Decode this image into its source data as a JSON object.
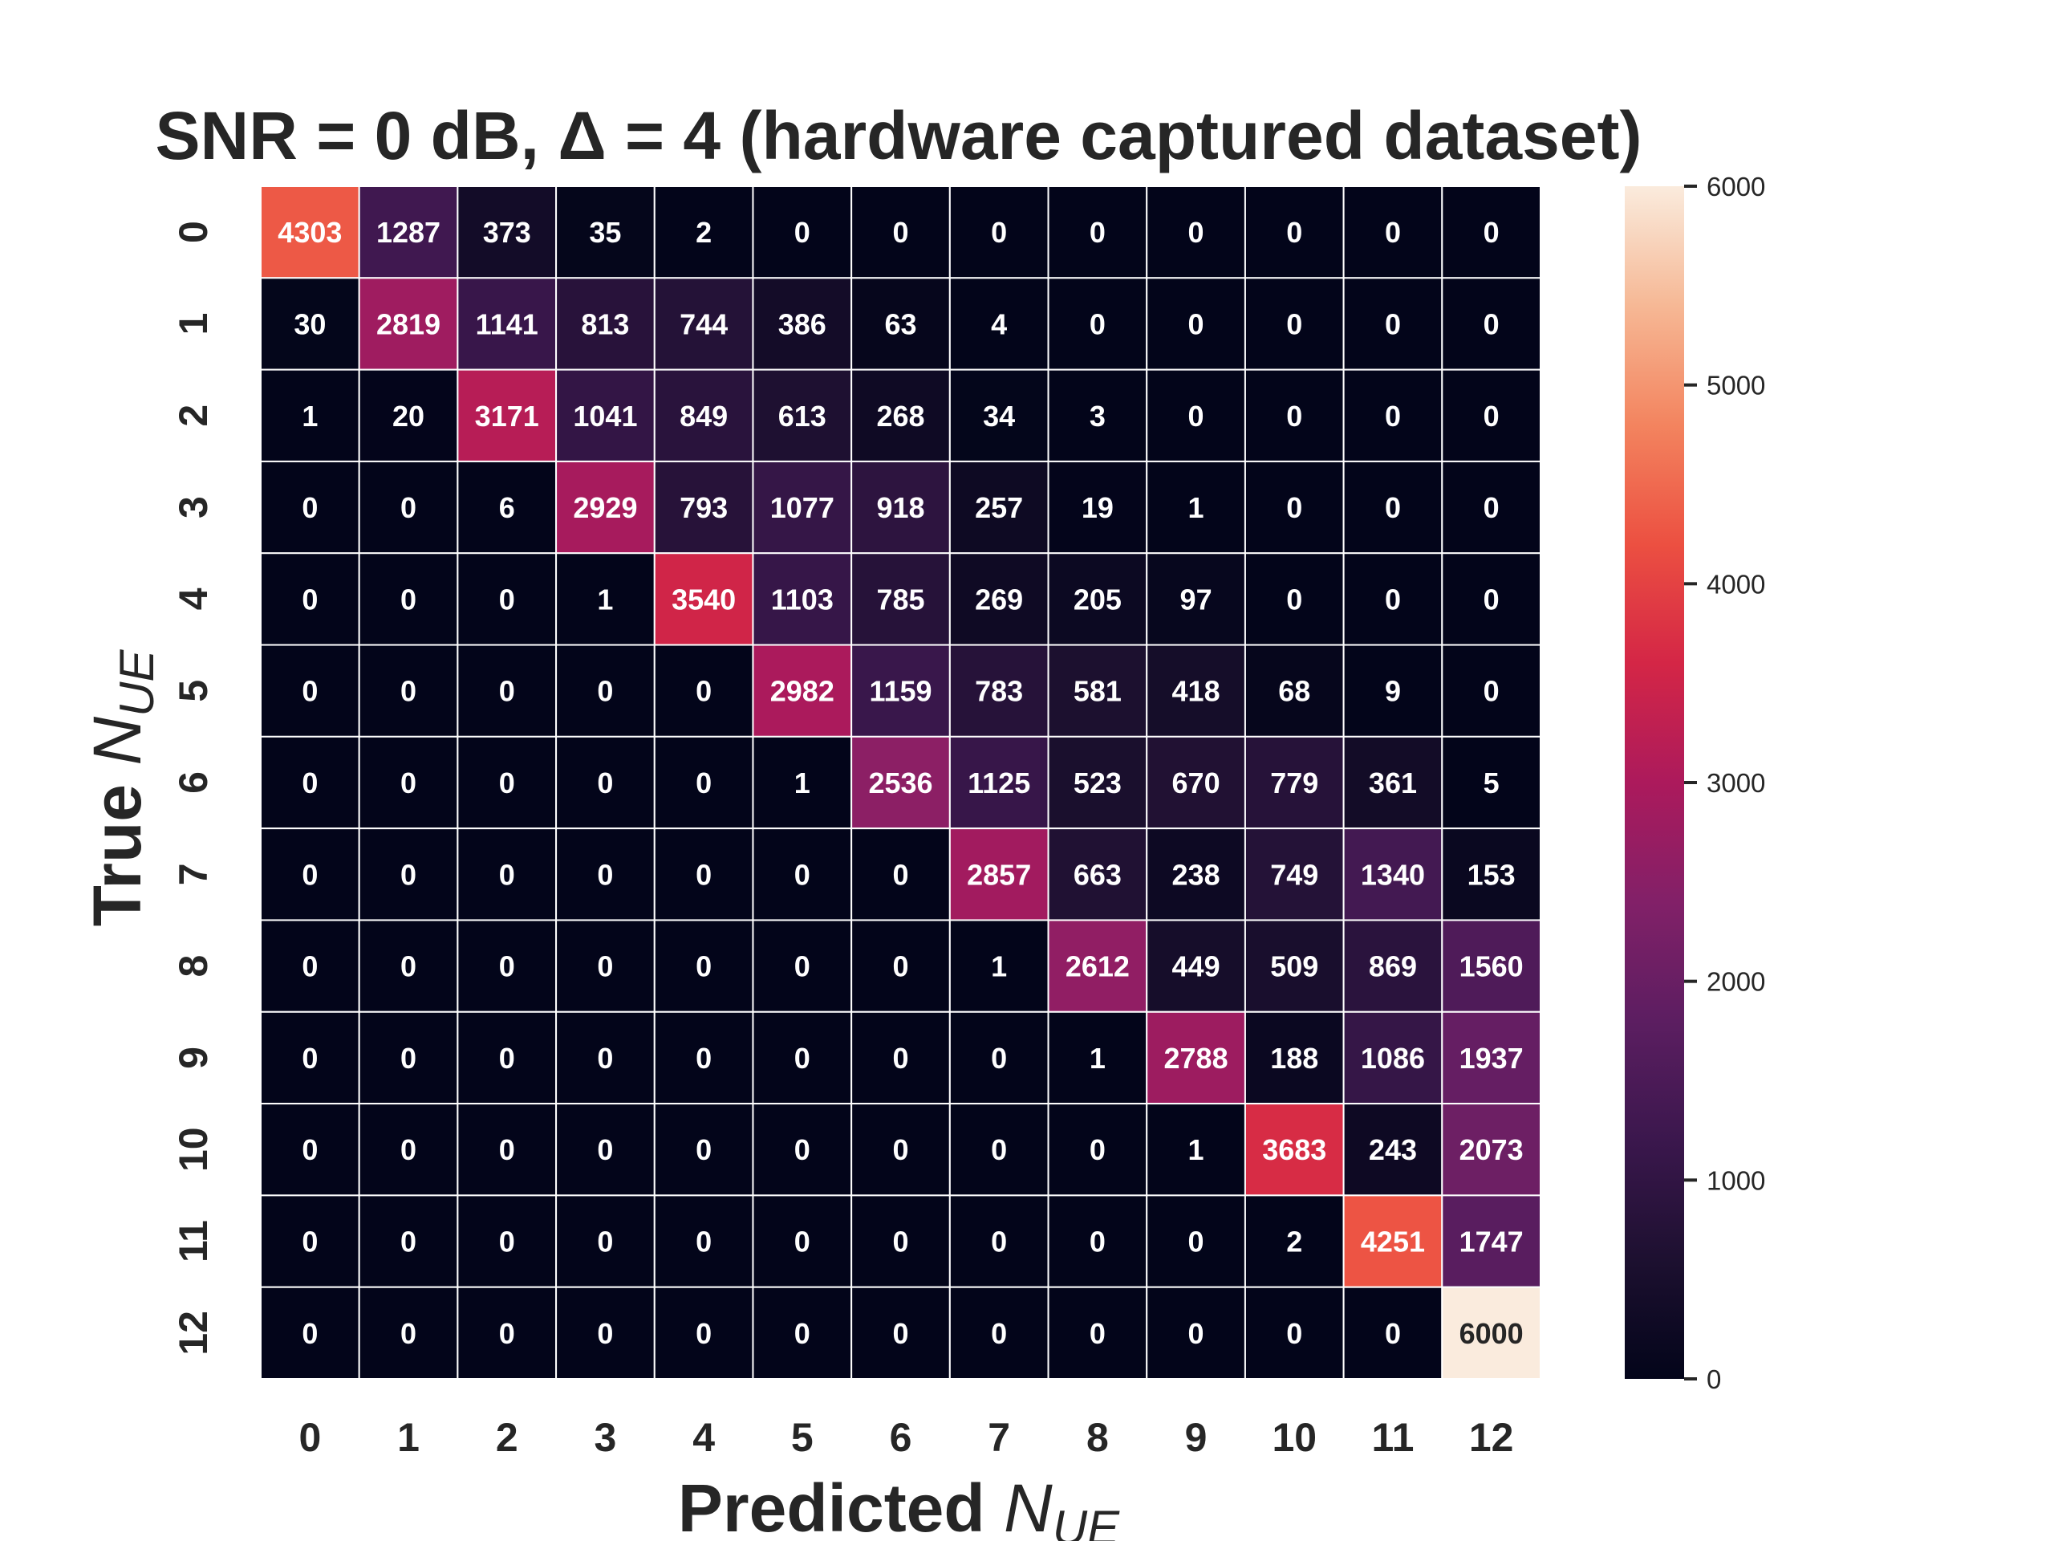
{
  "chart_data": {
    "type": "heatmap",
    "title": "SNR = 0 dB, Δ = 4 (hardware captured dataset)",
    "xlabel": {
      "main": "Predicted ",
      "italic": "N",
      "sub": "UE"
    },
    "ylabel": {
      "main": "True ",
      "italic": "N",
      "sub": "UE"
    },
    "x_categories": [
      "0",
      "1",
      "2",
      "3",
      "4",
      "5",
      "6",
      "7",
      "8",
      "9",
      "10",
      "11",
      "12"
    ],
    "y_categories": [
      "0",
      "1",
      "2",
      "3",
      "4",
      "5",
      "6",
      "7",
      "8",
      "9",
      "10",
      "11",
      "12"
    ],
    "matrix": [
      [
        4303,
        1287,
        373,
        35,
        2,
        0,
        0,
        0,
        0,
        0,
        0,
        0,
        0
      ],
      [
        30,
        2819,
        1141,
        813,
        744,
        386,
        63,
        4,
        0,
        0,
        0,
        0,
        0
      ],
      [
        1,
        20,
        3171,
        1041,
        849,
        613,
        268,
        34,
        3,
        0,
        0,
        0,
        0
      ],
      [
        0,
        0,
        6,
        2929,
        793,
        1077,
        918,
        257,
        19,
        1,
        0,
        0,
        0
      ],
      [
        0,
        0,
        0,
        1,
        3540,
        1103,
        785,
        269,
        205,
        97,
        0,
        0,
        0
      ],
      [
        0,
        0,
        0,
        0,
        0,
        2982,
        1159,
        783,
        581,
        418,
        68,
        9,
        0
      ],
      [
        0,
        0,
        0,
        0,
        0,
        1,
        2536,
        1125,
        523,
        670,
        779,
        361,
        5
      ],
      [
        0,
        0,
        0,
        0,
        0,
        0,
        0,
        2857,
        663,
        238,
        749,
        1340,
        153
      ],
      [
        0,
        0,
        0,
        0,
        0,
        0,
        0,
        1,
        2612,
        449,
        509,
        869,
        1560
      ],
      [
        0,
        0,
        0,
        0,
        0,
        0,
        0,
        0,
        1,
        2788,
        188,
        1086,
        1937
      ],
      [
        0,
        0,
        0,
        0,
        0,
        0,
        0,
        0,
        0,
        1,
        3683,
        243,
        2073
      ],
      [
        0,
        0,
        0,
        0,
        0,
        0,
        0,
        0,
        0,
        0,
        2,
        4251,
        1747
      ],
      [
        0,
        0,
        0,
        0,
        0,
        0,
        0,
        0,
        0,
        0,
        0,
        0,
        6000
      ]
    ],
    "colorbar": {
      "colormap": "rocket",
      "vmin": 0,
      "vmax": 6000,
      "ticks": [
        0,
        1000,
        2000,
        3000,
        4000,
        5000,
        6000
      ]
    },
    "grid_line_color": "#ffffff"
  }
}
